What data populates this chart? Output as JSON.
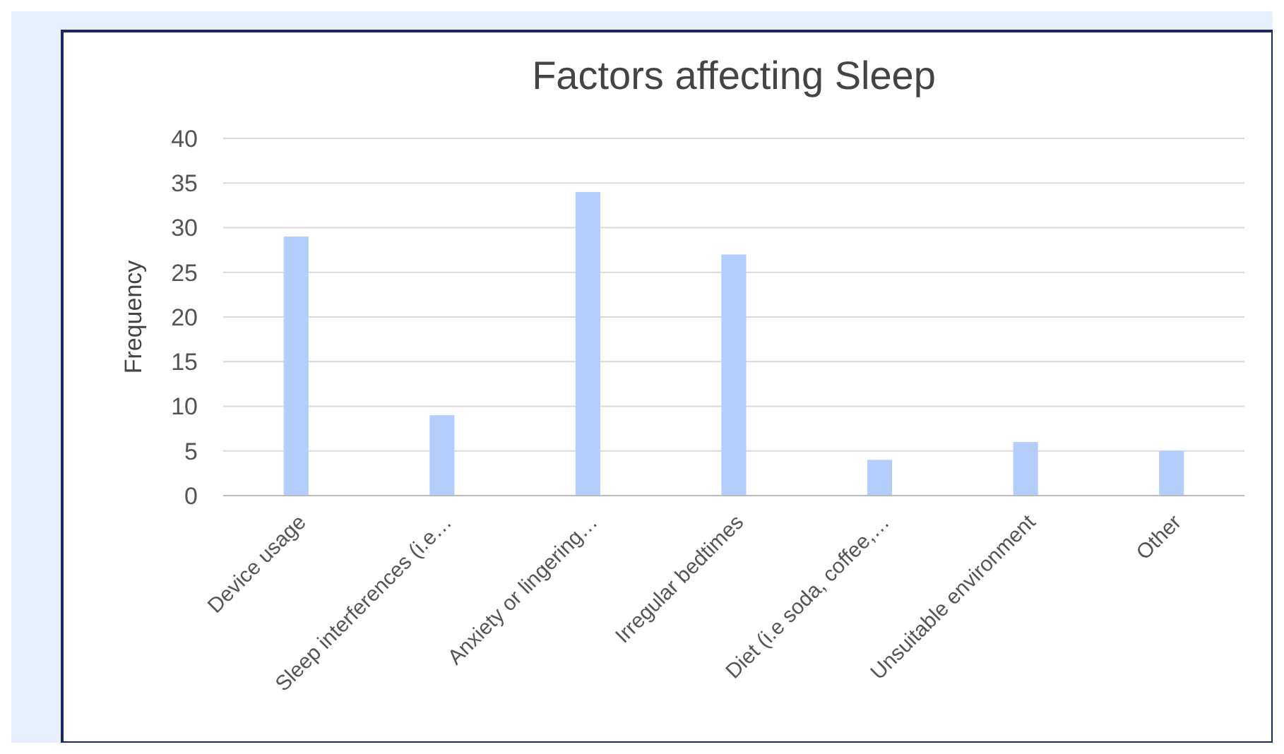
{
  "chart_data": {
    "type": "bar",
    "title": "Factors affecting Sleep",
    "ylabel": "Frequency",
    "categories": [
      "Device usage",
      "Sleep interferences (i.e…",
      "Anxiety or lingering…",
      "Irregular bedtimes",
      "Diet (i.e soda, coffee,…",
      "Unsuitable environment",
      "Other"
    ],
    "values": [
      29,
      9,
      34,
      27,
      4,
      6,
      5
    ],
    "color": "#b3cefb",
    "ylim": [
      0,
      40
    ],
    "yticks": [
      0,
      5,
      10,
      15,
      20,
      25,
      30,
      35,
      40
    ],
    "grid": "y"
  }
}
